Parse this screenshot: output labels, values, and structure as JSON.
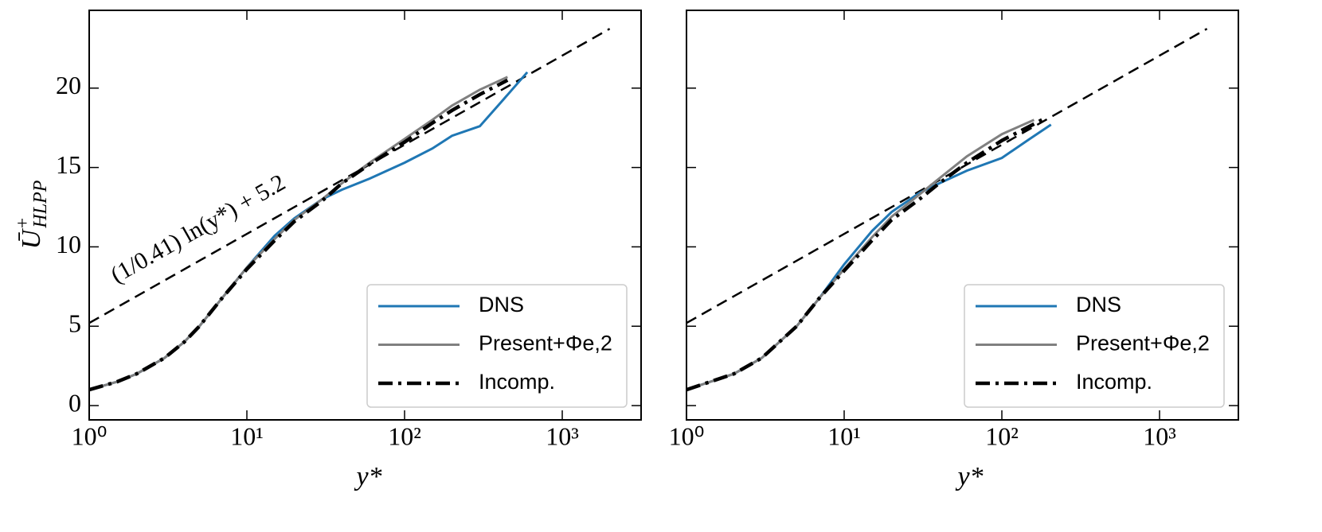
{
  "chart_data": [
    {
      "type": "line",
      "xlabel": "y*",
      "ylabel": {
        "base": "Ū",
        "sup": "+",
        "sub": "HLPP"
      },
      "log_x": true,
      "xlim": [
        1,
        3162
      ],
      "ylim": [
        -0.9,
        24.9
      ],
      "xticks": [
        {
          "value": 1,
          "label": "10⁰"
        },
        {
          "value": 10,
          "label": "10¹"
        },
        {
          "value": 100,
          "label": "10²"
        },
        {
          "value": 1000,
          "label": "10³"
        }
      ],
      "yticks": [
        0,
        5,
        10,
        15,
        20
      ],
      "show_ytick_labels": true,
      "legend": "lower right",
      "annotation": "(1/0.41) ln(y*) + 5.2",
      "reference_line": {
        "x": [
          1,
          2000
        ],
        "values": [
          5.2,
          23.74
        ],
        "color": "#000000"
      },
      "series": [
        {
          "name": "DNS",
          "color": "#1f77b4",
          "style": "solid",
          "x": [
            1,
            1.5,
            2,
            3,
            4,
            5,
            7,
            10,
            15,
            20,
            30,
            40,
            60,
            100,
            150,
            200,
            300,
            400,
            600
          ],
          "values": [
            1.0,
            1.5,
            2.0,
            3.0,
            4.0,
            5.0,
            6.8,
            8.7,
            10.7,
            11.8,
            13.0,
            13.6,
            14.3,
            15.3,
            16.2,
            17.0,
            17.6,
            19.0,
            21.0
          ]
        },
        {
          "name": "Present+Φe,2",
          "color": "#808080",
          "style": "solid",
          "x": [
            1,
            1.5,
            2,
            3,
            4,
            5,
            7,
            10,
            15,
            20,
            30,
            40,
            60,
            100,
            150,
            200,
            300,
            450
          ],
          "values": [
            1.0,
            1.5,
            2.0,
            3.0,
            4.0,
            5.0,
            6.8,
            8.7,
            10.5,
            11.7,
            13.0,
            14.0,
            15.3,
            16.8,
            18.0,
            18.9,
            19.9,
            20.7
          ]
        },
        {
          "name": "Incomp.",
          "color": "#000000",
          "style": "dashdot",
          "x": [
            1,
            1.5,
            2,
            3,
            4,
            5,
            7,
            10,
            15,
            20,
            30,
            40,
            60,
            100,
            150,
            200,
            300,
            450
          ],
          "values": [
            1.0,
            1.5,
            2.0,
            3.0,
            4.0,
            5.0,
            6.8,
            8.6,
            10.4,
            11.6,
            12.9,
            14.0,
            15.2,
            16.6,
            17.8,
            18.6,
            19.6,
            20.5
          ]
        }
      ]
    },
    {
      "type": "line",
      "xlabel": "y*",
      "log_x": true,
      "xlim": [
        1,
        3162
      ],
      "ylim": [
        -0.9,
        24.9
      ],
      "xticks": [
        {
          "value": 1,
          "label": "10⁰"
        },
        {
          "value": 10,
          "label": "10¹"
        },
        {
          "value": 100,
          "label": "10²"
        },
        {
          "value": 1000,
          "label": "10³"
        }
      ],
      "yticks": [
        0,
        5,
        10,
        15,
        20
      ],
      "show_ytick_labels": false,
      "legend": "lower right",
      "reference_line": {
        "x": [
          1,
          2000
        ],
        "values": [
          5.2,
          23.74
        ],
        "color": "#000000"
      },
      "series": [
        {
          "name": "DNS",
          "color": "#1f77b4",
          "style": "solid",
          "x": [
            1,
            2,
            3,
            5,
            7,
            10,
            15,
            20,
            30,
            40,
            60,
            100,
            150,
            205
          ],
          "values": [
            1.0,
            2.0,
            3.0,
            5.0,
            6.8,
            8.9,
            11.0,
            12.2,
            13.4,
            14.0,
            14.8,
            15.6,
            16.8,
            17.7
          ]
        },
        {
          "name": "Present+Φe,2",
          "color": "#808080",
          "style": "solid",
          "x": [
            1,
            2,
            3,
            5,
            7,
            10,
            15,
            20,
            30,
            40,
            60,
            100,
            160
          ],
          "values": [
            1.0,
            2.0,
            3.0,
            5.0,
            6.8,
            8.6,
            10.6,
            11.9,
            13.3,
            14.3,
            15.7,
            17.1,
            18.0
          ]
        },
        {
          "name": "Incomp.",
          "color": "#000000",
          "style": "dashdot",
          "x": [
            1,
            2,
            3,
            5,
            7,
            10,
            15,
            20,
            30,
            40,
            60,
            100,
            180
          ],
          "values": [
            1.0,
            2.0,
            3.0,
            5.0,
            6.8,
            8.5,
            10.4,
            11.7,
            13.0,
            14.0,
            15.3,
            16.7,
            18.0
          ]
        }
      ]
    }
  ]
}
